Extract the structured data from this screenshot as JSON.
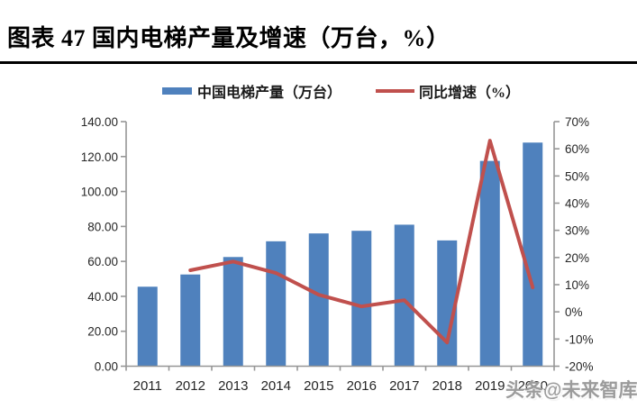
{
  "title": {
    "text": "图表 47 国内电梯产量及增速（万台，%）"
  },
  "legend": {
    "bar": {
      "label": "中国电梯产量（万台）",
      "color": "#4F81BD"
    },
    "line": {
      "label": "同比增速（%）",
      "color": "#C0504D"
    }
  },
  "watermark": {
    "text": "头条@未来智库"
  },
  "colors": {
    "bar": "#4F81BD",
    "line": "#C0504D",
    "axis": "#969696",
    "tick_text": "#262626"
  },
  "chart_data": {
    "type": "combo",
    "title": "图表 47 国内电梯产量及增速（万台，%）",
    "categories": [
      "2011",
      "2012",
      "2013",
      "2014",
      "2015",
      "2016",
      "2017",
      "2018",
      "2019",
      "2020"
    ],
    "series": [
      {
        "name": "中国电梯产量（万台）",
        "type": "bar",
        "axis": "left",
        "color": "#4F81BD",
        "values": [
          45.5,
          52.5,
          62.5,
          71.5,
          76,
          77.5,
          81,
          72,
          117.5,
          128
        ]
      },
      {
        "name": "同比增速（%）",
        "type": "line",
        "axis": "right",
        "color": "#C0504D",
        "values": [
          null,
          15.3,
          18.5,
          14.3,
          6.3,
          2,
          4.3,
          -11.3,
          63,
          9
        ]
      }
    ],
    "left_axis": {
      "range": [
        0,
        140
      ],
      "tick_step": 20,
      "tick_labels": [
        "0.00",
        "20.00",
        "40.00",
        "60.00",
        "80.00",
        "100.00",
        "120.00",
        "140.00"
      ]
    },
    "right_axis": {
      "range": [
        -20,
        70
      ],
      "tick_step": 10,
      "tick_labels": [
        "-20%",
        "-10%",
        "0%",
        "10%",
        "20%",
        "30%",
        "40%",
        "50%",
        "60%",
        "70%"
      ]
    },
    "grid": false,
    "legend_position": "top"
  }
}
